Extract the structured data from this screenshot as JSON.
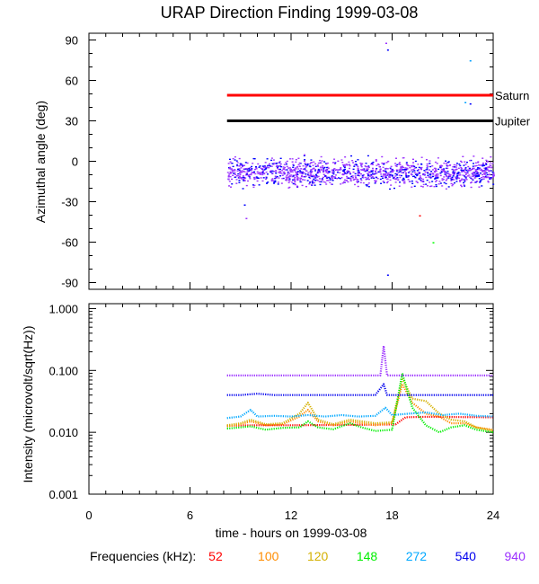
{
  "chart_data": [
    {
      "type": "scatter",
      "title": "URAP Direction Finding  1999-03-08",
      "xlabel": "",
      "ylabel": "Azimuthal angle (deg)",
      "xlim": [
        0,
        24
      ],
      "ylim": [
        -95,
        95
      ],
      "xticks": [
        0,
        6,
        12,
        18,
        24
      ],
      "yticks": [
        90,
        60,
        30,
        0,
        -30,
        -60,
        -90
      ],
      "ytick_labels": [
        "90",
        "60",
        "30",
        "0",
        "-30",
        "-60",
        "-90"
      ],
      "data_range": [
        8.2,
        24
      ],
      "reference_lines": [
        {
          "name": "Saturn",
          "y": 49,
          "x_start": 8.2,
          "x_end": 24,
          "color": "#ff0000"
        },
        {
          "name": "Jupiter",
          "y": 30,
          "x_start": 8.2,
          "x_end": 24,
          "color": "#000000"
        }
      ],
      "scatter_band": {
        "center": -8,
        "spread": 6,
        "colors": [
          "#9b30ff",
          "#0000ff",
          "#a040ff"
        ]
      },
      "outliers": [
        {
          "x": 17.6,
          "y": 88,
          "color": "#9b30ff"
        },
        {
          "x": 17.7,
          "y": 83,
          "color": "#0000ff"
        },
        {
          "x": 22.6,
          "y": 75,
          "color": "#00a0ff"
        },
        {
          "x": 22.3,
          "y": 44,
          "color": "#00a0ff"
        },
        {
          "x": 22.6,
          "y": 43,
          "color": "#0000ff"
        },
        {
          "x": 9.2,
          "y": -32,
          "color": "#0000ff"
        },
        {
          "x": 9.3,
          "y": -42,
          "color": "#9b30ff"
        },
        {
          "x": 19.6,
          "y": -40,
          "color": "#ff0000"
        },
        {
          "x": 20.4,
          "y": -60,
          "color": "#00ff00"
        },
        {
          "x": 17.7,
          "y": -84,
          "color": "#0000ff"
        }
      ]
    },
    {
      "type": "line",
      "title": "",
      "xlabel": "time - hours on 1999-03-08",
      "ylabel": "Intensity (microvolt/sqrt(Hz))",
      "yscale": "log",
      "xlim": [
        0,
        24
      ],
      "ylim": [
        0.001,
        1.2
      ],
      "xticks": [
        0,
        6,
        12,
        18,
        24
      ],
      "xtick_labels": [
        "0",
        "6",
        "12",
        "18",
        "24"
      ],
      "yticks": [
        1.0,
        0.1,
        0.01,
        0.001
      ],
      "ytick_labels": [
        "1.000",
        "0.100",
        "0.010",
        "0.001"
      ],
      "legend_label": "Frequencies (kHz):",
      "series": [
        {
          "name": "52",
          "color": "#ff0000",
          "x": [
            8.2,
            10,
            12,
            14,
            16,
            18.2,
            18.8,
            20,
            22,
            24
          ],
          "values": [
            0.0128,
            0.013,
            0.013,
            0.0131,
            0.0132,
            0.0134,
            0.0175,
            0.0178,
            0.0176,
            0.0175
          ]
        },
        {
          "name": "100",
          "color": "#ff8c00",
          "x": [
            8.2,
            9,
            9.6,
            10.5,
            11.5,
            12.5,
            13,
            13.6,
            14.5,
            15.5,
            16.2,
            17,
            18,
            18.6,
            19.2,
            20,
            20.8,
            21.5,
            22.3,
            23,
            24
          ],
          "values": [
            0.0125,
            0.0135,
            0.015,
            0.013,
            0.0135,
            0.018,
            0.023,
            0.015,
            0.013,
            0.015,
            0.014,
            0.013,
            0.014,
            0.06,
            0.03,
            0.02,
            0.018,
            0.014,
            0.014,
            0.012,
            0.011
          ]
        },
        {
          "name": "120",
          "color": "#d4b000",
          "x": [
            8.2,
            9,
            9.6,
            10.5,
            11.5,
            12.5,
            13,
            13.6,
            14.5,
            15.5,
            16.2,
            17,
            18,
            18.6,
            19.2,
            20,
            20.8,
            21.5,
            22.3,
            23,
            24
          ],
          "values": [
            0.013,
            0.014,
            0.016,
            0.0135,
            0.014,
            0.02,
            0.03,
            0.016,
            0.0135,
            0.016,
            0.015,
            0.014,
            0.0145,
            0.075,
            0.035,
            0.032,
            0.02,
            0.016,
            0.015,
            0.012,
            0.0105
          ]
        },
        {
          "name": "148",
          "color": "#00ee00",
          "x": [
            8.2,
            9,
            9.6,
            10.5,
            11.5,
            12.5,
            13,
            13.6,
            14.5,
            15.5,
            16.2,
            17,
            18,
            18.6,
            19.2,
            20,
            20.8,
            21.5,
            22.3,
            23,
            24
          ],
          "values": [
            0.0115,
            0.012,
            0.0125,
            0.011,
            0.0118,
            0.012,
            0.015,
            0.012,
            0.0112,
            0.014,
            0.012,
            0.0105,
            0.011,
            0.09,
            0.025,
            0.013,
            0.01,
            0.012,
            0.013,
            0.011,
            0.01
          ]
        },
        {
          "name": "272",
          "color": "#00a8ff",
          "x": [
            8.2,
            9,
            9.6,
            10,
            11,
            12,
            13,
            14,
            15,
            16,
            17,
            17.6,
            18,
            19,
            20,
            21,
            22,
            23,
            24
          ],
          "values": [
            0.017,
            0.018,
            0.023,
            0.018,
            0.0185,
            0.018,
            0.019,
            0.018,
            0.019,
            0.018,
            0.0185,
            0.025,
            0.019,
            0.02,
            0.021,
            0.019,
            0.02,
            0.0185,
            0.018
          ]
        },
        {
          "name": "540",
          "color": "#0000ee",
          "x": [
            8.2,
            9,
            10,
            11,
            12,
            13,
            14,
            15,
            16,
            17,
            17.5,
            17.7,
            18,
            19,
            20,
            21,
            22,
            23,
            24
          ],
          "values": [
            0.04,
            0.04,
            0.042,
            0.04,
            0.04,
            0.04,
            0.04,
            0.04,
            0.04,
            0.04,
            0.06,
            0.04,
            0.04,
            0.04,
            0.04,
            0.04,
            0.04,
            0.04,
            0.04
          ]
        },
        {
          "name": "940",
          "color": "#9b30ff",
          "x": [
            8.2,
            10,
            12,
            14,
            16,
            17.3,
            17.5,
            17.7,
            18,
            20,
            22,
            24
          ],
          "values": [
            0.083,
            0.083,
            0.083,
            0.083,
            0.083,
            0.083,
            0.25,
            0.083,
            0.083,
            0.083,
            0.083,
            0.083
          ]
        }
      ]
    }
  ]
}
